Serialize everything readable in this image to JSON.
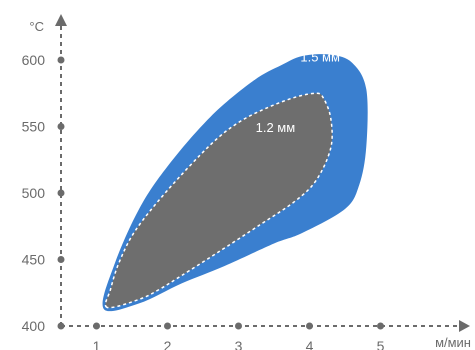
{
  "chart_data": {
    "type": "area",
    "title": "",
    "xlabel": "м/мин",
    "ylabel": "°C",
    "xlim": [
      0.6,
      5.4
    ],
    "ylim": [
      400,
      620
    ],
    "xticks": [
      1,
      2,
      3,
      4,
      5
    ],
    "yticks": [
      400,
      450,
      500,
      550,
      600
    ],
    "grid": false,
    "regions": [
      {
        "name": "1.5 мм",
        "label": "1.5 мм",
        "color": "#3a7fcf",
        "label_at": [
          4.15,
          599
        ],
        "outline": [
          [
            1.1,
            413
          ],
          [
            1.25,
            446
          ],
          [
            1.6,
            488
          ],
          [
            2.0,
            520
          ],
          [
            2.6,
            557
          ],
          [
            3.2,
            584
          ],
          [
            3.6,
            596
          ],
          [
            3.9,
            603
          ],
          [
            4.3,
            604
          ],
          [
            4.6,
            598
          ],
          [
            4.8,
            578
          ],
          [
            4.8,
            535
          ],
          [
            4.7,
            506
          ],
          [
            4.5,
            488
          ],
          [
            3.9,
            470
          ],
          [
            3.5,
            462
          ],
          [
            2.8,
            445
          ],
          [
            2.2,
            432
          ],
          [
            1.6,
            417
          ],
          [
            1.1,
            413
          ]
        ]
      },
      {
        "name": "1.2 мм",
        "label": "1.2 мм",
        "color": "#6e6e6e",
        "label_at": [
          3.52,
          546
        ],
        "outline": [
          [
            1.15,
            414
          ],
          [
            1.2,
            428
          ],
          [
            1.32,
            448
          ],
          [
            1.55,
            472
          ],
          [
            2.0,
            502
          ],
          [
            2.6,
            536
          ],
          [
            3.0,
            553
          ],
          [
            3.4,
            564
          ],
          [
            3.8,
            572
          ],
          [
            4.1,
            575
          ],
          [
            4.2,
            571
          ],
          [
            4.3,
            556
          ],
          [
            4.3,
            534
          ],
          [
            4.1,
            510
          ],
          [
            3.8,
            494
          ],
          [
            3.3,
            476
          ],
          [
            2.7,
            455
          ],
          [
            2.2,
            438
          ],
          [
            1.9,
            428
          ],
          [
            1.6,
            420
          ],
          [
            1.15,
            414
          ]
        ]
      }
    ]
  }
}
